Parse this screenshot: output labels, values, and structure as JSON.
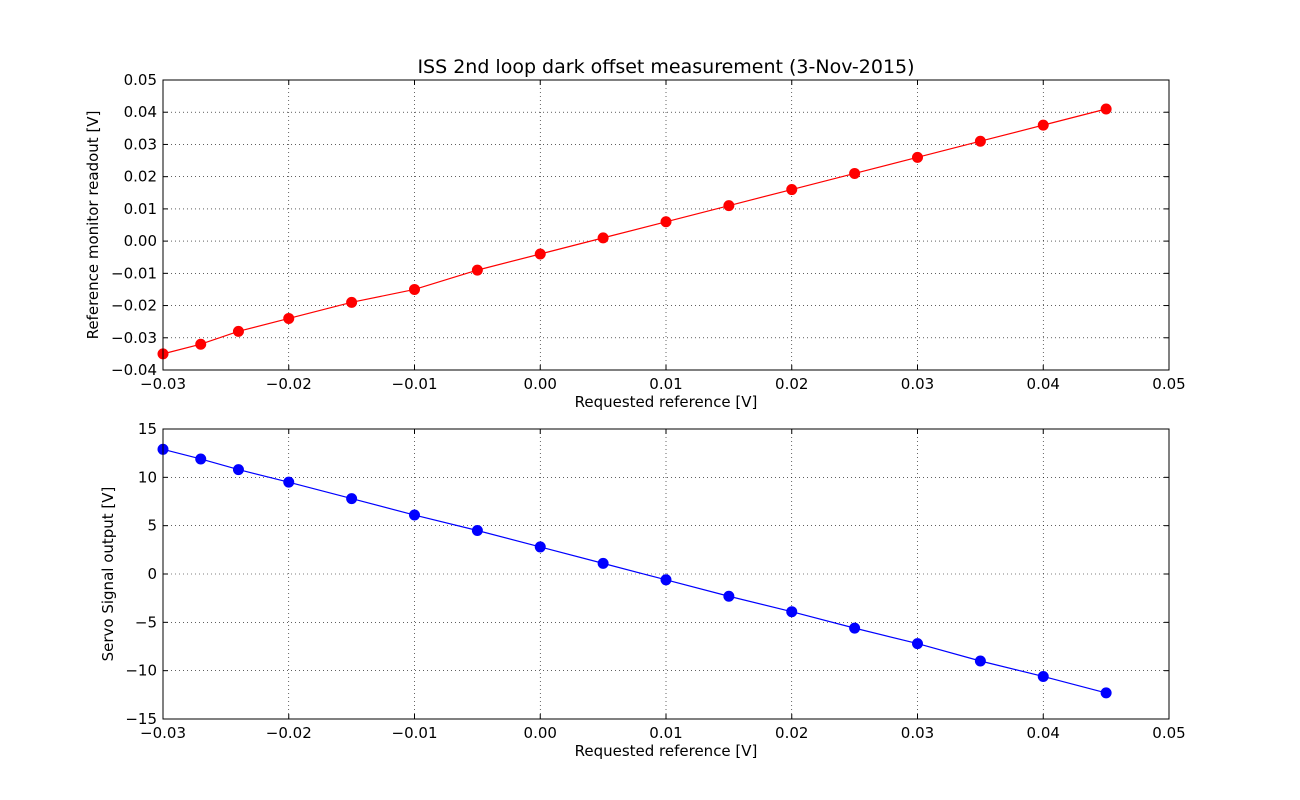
{
  "chart_data": [
    {
      "type": "line",
      "title": "ISS 2nd loop dark offset measurement (3-Nov-2015)",
      "xlabel": "Requested reference [V]",
      "ylabel": "Reference monitor readout [V]",
      "xlim": [
        -0.03,
        0.05
      ],
      "ylim": [
        -0.04,
        0.05
      ],
      "xticks": [
        "−0.03",
        "−0.02",
        "−0.01",
        "0.00",
        "0.01",
        "0.02",
        "0.03",
        "0.04",
        "0.05"
      ],
      "yticks": [
        "−0.04",
        "−0.03",
        "−0.02",
        "−0.01",
        "0.00",
        "0.01",
        "0.02",
        "0.03",
        "0.04",
        "0.05"
      ],
      "grid": true,
      "series": [
        {
          "color": "#ff0000",
          "marker": "circle",
          "x": [
            -0.03,
            -0.027,
            -0.024,
            -0.02,
            -0.015,
            -0.01,
            -0.005,
            0.0,
            0.005,
            0.01,
            0.015,
            0.02,
            0.025,
            0.03,
            0.035,
            0.04,
            0.045
          ],
          "y": [
            -0.035,
            -0.032,
            -0.028,
            -0.024,
            -0.019,
            -0.015,
            -0.009,
            -0.004,
            0.001,
            0.006,
            0.011,
            0.016,
            0.021,
            0.026,
            0.031,
            0.036,
            0.041
          ]
        }
      ]
    },
    {
      "type": "line",
      "title": "",
      "xlabel": "Requested reference [V]",
      "ylabel": "Servo Signal output [V]",
      "xlim": [
        -0.03,
        0.05
      ],
      "ylim": [
        -15,
        15
      ],
      "xticks": [
        "−0.03",
        "−0.02",
        "−0.01",
        "0.00",
        "0.01",
        "0.02",
        "0.03",
        "0.04",
        "0.05"
      ],
      "yticks": [
        "−15",
        "−10",
        "−5",
        "0",
        "5",
        "10",
        "15"
      ],
      "grid": true,
      "series": [
        {
          "color": "#0000ff",
          "marker": "circle",
          "x": [
            -0.03,
            -0.027,
            -0.024,
            -0.02,
            -0.015,
            -0.01,
            -0.005,
            0.0,
            0.005,
            0.01,
            0.015,
            0.02,
            0.025,
            0.03,
            0.035,
            0.04,
            0.045
          ],
          "y": [
            12.9,
            11.9,
            10.8,
            9.5,
            7.8,
            6.1,
            4.5,
            2.8,
            1.1,
            -0.6,
            -2.3,
            -3.9,
            -5.6,
            -7.2,
            -9.0,
            -10.6,
            -12.3
          ]
        }
      ]
    }
  ]
}
